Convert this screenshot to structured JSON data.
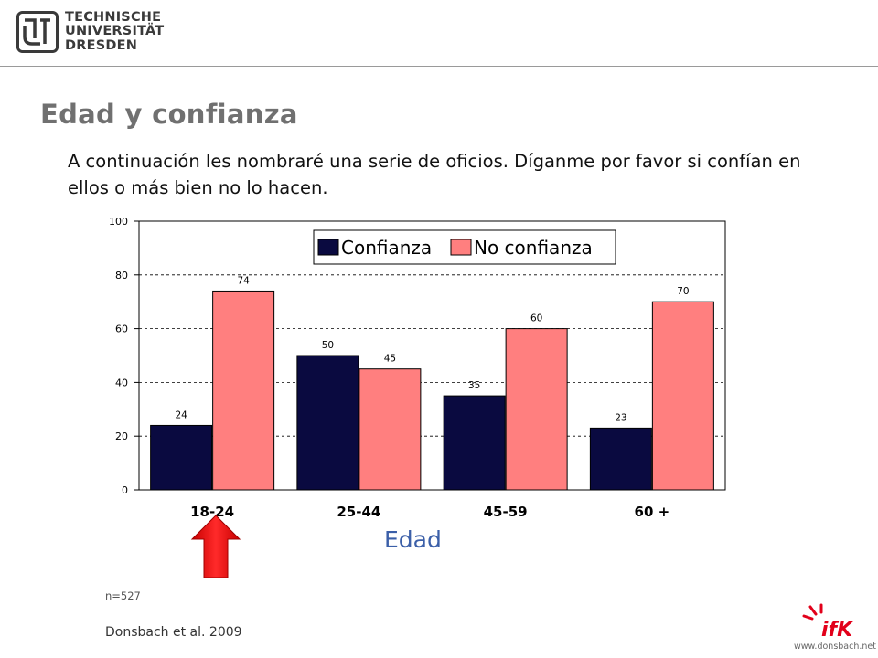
{
  "header": {
    "logo_line1": "TECHNISCHE",
    "logo_line2": "UNIVERSITÄT",
    "logo_line3": "DRESDEN"
  },
  "slide": {
    "title": "Edad y confianza",
    "subtitle": "A continuación les nombraré una serie de oficios. Díganme por favor si confían en ellos o más bien no lo hacen."
  },
  "colors": {
    "confianza": "#0a0a40",
    "no_confianza": "#ff7f7f",
    "arrow": "#ee1c1c"
  },
  "chart_data": {
    "type": "bar",
    "categories": [
      "18-24",
      "25-44",
      "45-59",
      "60 +"
    ],
    "series": [
      {
        "name": "Confianza",
        "values": [
          24,
          50,
          35,
          23
        ]
      },
      {
        "name": "No confianza",
        "values": [
          74,
          45,
          60,
          70
        ]
      }
    ],
    "xlabel": "Edad",
    "ylabel": "",
    "ylim": [
      0,
      100
    ],
    "yticks": [
      0,
      20,
      40,
      60,
      80,
      100
    ],
    "grid": true,
    "legend": "top-center",
    "highlighted_category": "18-24"
  },
  "footer": {
    "sample": "n=527",
    "source": "Donsbach et al. 2009",
    "website": "www.donsbach.net",
    "ifk_logo_text": "ifK"
  }
}
